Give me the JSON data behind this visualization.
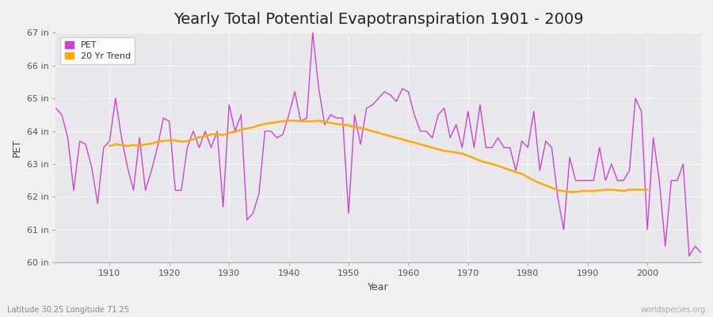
{
  "title": "Yearly Total Potential Evapotranspiration 1901 - 2009",
  "xlabel": "Year",
  "ylabel": "PET",
  "years": [
    1901,
    1902,
    1903,
    1904,
    1905,
    1906,
    1907,
    1908,
    1909,
    1910,
    1911,
    1912,
    1913,
    1914,
    1915,
    1916,
    1917,
    1918,
    1919,
    1920,
    1921,
    1922,
    1923,
    1924,
    1925,
    1926,
    1927,
    1928,
    1929,
    1930,
    1931,
    1932,
    1933,
    1934,
    1935,
    1936,
    1937,
    1938,
    1939,
    1940,
    1941,
    1942,
    1943,
    1944,
    1945,
    1946,
    1947,
    1948,
    1949,
    1950,
    1951,
    1952,
    1953,
    1954,
    1955,
    1956,
    1957,
    1958,
    1959,
    1960,
    1961,
    1962,
    1963,
    1964,
    1965,
    1966,
    1967,
    1968,
    1969,
    1970,
    1971,
    1972,
    1973,
    1974,
    1975,
    1976,
    1977,
    1978,
    1979,
    1980,
    1981,
    1982,
    1983,
    1984,
    1985,
    1986,
    1987,
    1988,
    1989,
    1990,
    1991,
    1992,
    1993,
    1994,
    1995,
    1996,
    1997,
    1998,
    1999,
    2000,
    2001,
    2002,
    2003,
    2004,
    2005,
    2006,
    2007,
    2008,
    2009
  ],
  "pet": [
    64.7,
    64.5,
    63.8,
    62.2,
    63.7,
    63.6,
    62.9,
    61.8,
    63.5,
    63.7,
    65.0,
    63.8,
    62.9,
    62.2,
    63.8,
    62.2,
    62.8,
    63.5,
    64.4,
    64.3,
    62.2,
    62.2,
    63.5,
    64.0,
    63.5,
    64.0,
    63.5,
    64.0,
    61.7,
    64.8,
    64.0,
    64.5,
    61.3,
    61.5,
    62.1,
    64.0,
    64.0,
    63.8,
    63.9,
    64.5,
    65.2,
    64.3,
    64.4,
    67.0,
    65.3,
    64.2,
    64.5,
    64.4,
    64.4,
    61.5,
    64.5,
    63.6,
    64.7,
    64.8,
    65.0,
    65.2,
    65.1,
    64.9,
    65.3,
    65.2,
    64.5,
    64.0,
    64.0,
    63.8,
    64.5,
    64.7,
    63.8,
    64.2,
    63.5,
    64.6,
    63.5,
    64.8,
    63.5,
    63.5,
    63.8,
    63.5,
    63.5,
    62.8,
    63.7,
    63.5,
    64.6,
    62.8,
    63.7,
    63.5,
    62.0,
    61.0,
    63.2,
    62.5,
    62.5,
    62.5,
    62.5,
    63.5,
    62.5,
    63.0,
    62.5,
    62.5,
    62.8,
    65.0,
    64.6,
    61.0,
    63.8,
    62.5,
    60.5,
    62.5,
    62.5,
    63.0,
    60.2,
    60.5,
    60.3
  ],
  "trend_years": [
    1910,
    1911,
    1912,
    1913,
    1914,
    1915,
    1916,
    1917,
    1918,
    1919,
    1920,
    1921,
    1922,
    1923,
    1924,
    1925,
    1926,
    1927,
    1928,
    1929,
    1930,
    1931,
    1932,
    1933,
    1934,
    1935,
    1936,
    1937,
    1938,
    1939,
    1940,
    1941,
    1942,
    1943,
    1944,
    1945,
    1946,
    1947,
    1948,
    1949,
    1950,
    1951,
    1952,
    1953,
    1954,
    1955,
    1956,
    1957,
    1958,
    1959,
    1960,
    1961,
    1962,
    1963,
    1964,
    1965,
    1966,
    1967,
    1968,
    1969,
    1970,
    1971,
    1972,
    1973,
    1974,
    1975,
    1976,
    1977,
    1978,
    1979,
    1980,
    1981,
    1982,
    1983,
    1984,
    1985,
    1986,
    1987,
    1988,
    1989,
    1990,
    1991,
    1992,
    1993,
    1994,
    1995,
    1996,
    1997,
    1998,
    1999,
    2000
  ],
  "trend": [
    63.55,
    63.6,
    63.58,
    63.55,
    63.58,
    63.55,
    63.6,
    63.62,
    63.68,
    63.7,
    63.72,
    63.72,
    63.68,
    63.7,
    63.75,
    63.82,
    63.85,
    63.9,
    63.92,
    63.88,
    63.95,
    63.98,
    64.05,
    64.08,
    64.12,
    64.18,
    64.22,
    64.25,
    64.28,
    64.3,
    64.32,
    64.32,
    64.3,
    64.3,
    64.3,
    64.32,
    64.28,
    64.25,
    64.22,
    64.2,
    64.18,
    64.12,
    64.1,
    64.05,
    64.0,
    63.95,
    63.9,
    63.85,
    63.8,
    63.75,
    63.7,
    63.65,
    63.6,
    63.55,
    63.5,
    63.45,
    63.4,
    63.38,
    63.35,
    63.32,
    63.25,
    63.18,
    63.1,
    63.05,
    63.0,
    62.95,
    62.88,
    62.82,
    62.75,
    62.7,
    62.6,
    62.5,
    62.42,
    62.35,
    62.28,
    62.2,
    62.18,
    62.15,
    62.15,
    62.18,
    62.18,
    62.18,
    62.2,
    62.22,
    62.22,
    62.2,
    62.18,
    62.22,
    62.22,
    62.22,
    62.22
  ],
  "pet_color": "#cc44cc",
  "trend_color": "#ffaa00",
  "fig_bg_color": "#f0f0f0",
  "plot_bg_color": "#e8e8ec",
  "ylim": [
    60,
    67
  ],
  "yticks": [
    60,
    61,
    62,
    63,
    64,
    65,
    66,
    67
  ],
  "ytick_labels": [
    "60 in",
    "61 in",
    "62 in",
    "63 in",
    "64 in",
    "65 in",
    "66 in",
    "67 in"
  ],
  "xticks": [
    1910,
    1920,
    1930,
    1940,
    1950,
    1960,
    1970,
    1980,
    1990,
    2000
  ],
  "xlim": [
    1901,
    2009
  ],
  "title_fontsize": 14,
  "axis_label_fontsize": 9,
  "tick_fontsize": 8,
  "legend_labels": [
    "PET",
    "20 Yr Trend"
  ],
  "footer_left": "Latitude 30.25 Longitude 71.25",
  "footer_right": "worldspecies.org"
}
